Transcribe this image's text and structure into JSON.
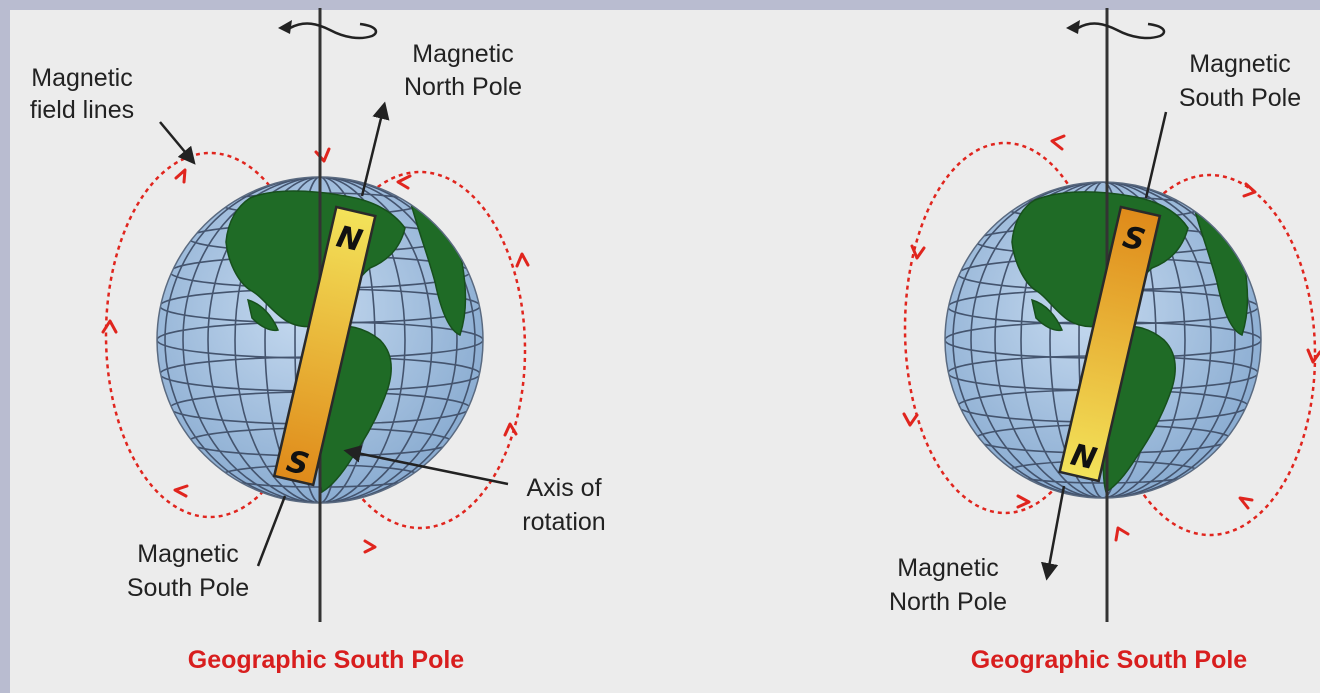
{
  "diagrams": [
    {
      "labels": {
        "field_lines": [
          "Magnetic",
          "field lines"
        ],
        "top_pole": [
          "Magnetic",
          "North Pole"
        ],
        "bottom_pole": [
          "Magnetic",
          "South Pole"
        ],
        "axis": [
          "Axis of",
          "rotation"
        ],
        "caption": "Geographic South Pole"
      },
      "magnet": {
        "top_letter": "N",
        "bottom_letter": "S"
      }
    },
    {
      "labels": {
        "top_pole": [
          "Magnetic",
          "South Pole"
        ],
        "bottom_pole": [
          "Magnetic",
          "North Pole"
        ],
        "caption": "Geographic South Pole"
      },
      "magnet": {
        "top_letter": "S",
        "bottom_letter": "N"
      }
    }
  ],
  "colors": {
    "ocean": "#a9c5e0",
    "land": "#1f6b26",
    "grid": "#44546e",
    "magnet_light": "#f2e056",
    "magnet_dark": "#e08e1c",
    "field_line": "#e0251e",
    "caption": "#d81e1e",
    "frame": "#b9bcd0",
    "background": "#ececec"
  }
}
